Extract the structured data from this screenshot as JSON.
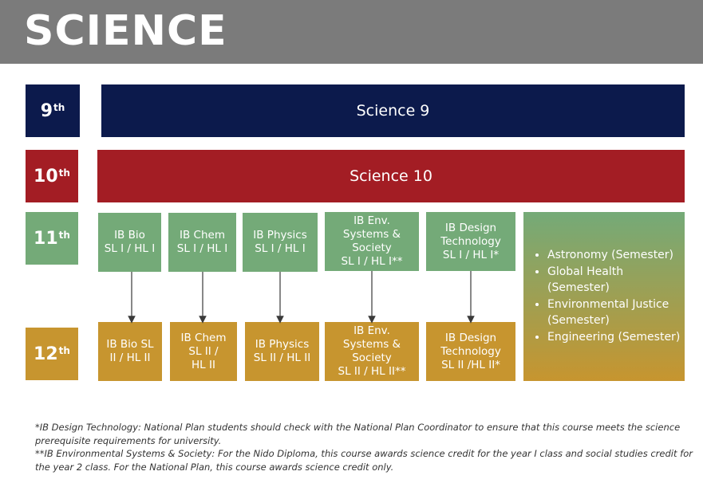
{
  "header": {
    "title": "SCIENCE"
  },
  "grades": [
    {
      "num": "9",
      "suffix": "th",
      "color": "#0c1a4c"
    },
    {
      "num": "10",
      "suffix": "th",
      "color": "#a31d24"
    },
    {
      "num": "11",
      "suffix": "th",
      "color": "#74aa78"
    },
    {
      "num": "12",
      "suffix": "th",
      "color": "#c7952f"
    }
  ],
  "bands": {
    "science9": "Science 9",
    "science10": "Science 10"
  },
  "grade11_courses": [
    {
      "lines": [
        "IB Bio",
        "SL I / HL I"
      ]
    },
    {
      "lines": [
        "IB Chem",
        "SL I / HL I"
      ]
    },
    {
      "lines": [
        "IB Physics",
        "SL I / HL I"
      ]
    },
    {
      "lines": [
        "IB Env.",
        "Systems &",
        "Society",
        "SL I / HL I**"
      ]
    },
    {
      "lines": [
        "IB Design",
        "Technology",
        "SL I / HL I*"
      ]
    }
  ],
  "grade12_courses": [
    {
      "lines": [
        "IB Bio SL",
        "II / HL II"
      ]
    },
    {
      "lines": [
        "IB Chem",
        "SL II /",
        "HL II"
      ]
    },
    {
      "lines": [
        "IB Physics",
        "SL II / HL II"
      ]
    },
    {
      "lines": [
        "IB Env.",
        "Systems &",
        "Society",
        "SL II / HL II**"
      ]
    },
    {
      "lines": [
        "IB Design",
        "Technology",
        "SL II /HL II*"
      ]
    }
  ],
  "electives": [
    {
      "lines": [
        "Astronomy (Semester)"
      ]
    },
    {
      "lines": [
        "Global Health",
        "(Semester)"
      ]
    },
    {
      "lines": [
        "Environmental Justice",
        "(Semester)"
      ]
    },
    {
      "lines": [
        "Engineering (Semester)"
      ]
    }
  ],
  "footnotes": [
    "*IB Design Technology: National Plan students should check with the National Plan Coordinator to ensure that this course meets the science prerequisite requirements for university.",
    "**IB Environmental Systems & Society: For the Nido Diploma, this course awards science credit for the year I class and social studies credit for the year 2 class.  For the National Plan, this course awards science credit only."
  ]
}
